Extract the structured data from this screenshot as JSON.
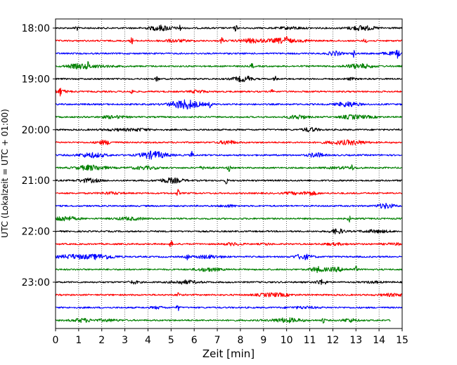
{
  "chart_data": {
    "type": "line",
    "xlabel": "Zeit  [min]",
    "ylabel": "UTC (Lokalzeit = UTC + 01:00)",
    "xlim": [
      0,
      15
    ],
    "x_ticks": [
      "0",
      "1",
      "2",
      "3",
      "4",
      "5",
      "6",
      "7",
      "8",
      "9",
      "10",
      "11",
      "12",
      "13",
      "14",
      "15"
    ],
    "y_ticks": [
      "18:00",
      "19:00",
      "20:00",
      "21:00",
      "22:00",
      "23:00"
    ],
    "grid": "vertical dotted at each minute",
    "trace_interval_min": 15,
    "trace_colors": [
      "#000000",
      "#ff0000",
      "#0000ff",
      "#008000"
    ],
    "traces": [
      {
        "start": "18:00",
        "color": "#000000",
        "events": [
          0.9,
          5.4,
          7.8
        ]
      },
      {
        "start": "18:15",
        "color": "#ff0000",
        "events": [
          3.3,
          7.2,
          10.0,
          13.4
        ]
      },
      {
        "start": "18:30",
        "color": "#0000ff",
        "events": [
          12.9,
          14.8
        ]
      },
      {
        "start": "18:45",
        "color": "#008000",
        "events": [
          1.4,
          8.5
        ]
      },
      {
        "start": "19:00",
        "color": "#000000",
        "events": [
          4.4,
          8.4,
          9.5
        ]
      },
      {
        "start": "19:15",
        "color": "#ff0000",
        "events": [
          0.2,
          3.3,
          9.4
        ]
      },
      {
        "start": "19:30",
        "color": "#0000ff",
        "events": [
          6.7
        ]
      },
      {
        "start": "19:45",
        "color": "#008000",
        "events": []
      },
      {
        "start": "20:00",
        "color": "#000000",
        "events": []
      },
      {
        "start": "20:15",
        "color": "#ff0000",
        "events": []
      },
      {
        "start": "20:30",
        "color": "#0000ff",
        "events": [
          5.9
        ]
      },
      {
        "start": "20:45",
        "color": "#008000",
        "events": [
          7.5,
          12.8
        ]
      },
      {
        "start": "21:00",
        "color": "#000000",
        "events": [
          7.4
        ]
      },
      {
        "start": "21:15",
        "color": "#ff0000",
        "events": [
          5.3
        ]
      },
      {
        "start": "21:30",
        "color": "#0000ff",
        "events": []
      },
      {
        "start": "21:45",
        "color": "#008000",
        "events": [
          12.7
        ]
      },
      {
        "start": "22:00",
        "color": "#000000",
        "events": []
      },
      {
        "start": "22:15",
        "color": "#ff0000",
        "events": [
          5.0
        ]
      },
      {
        "start": "22:30",
        "color": "#0000ff",
        "events": [
          5.7
        ]
      },
      {
        "start": "22:45",
        "color": "#008000",
        "events": [
          13.0
        ]
      },
      {
        "start": "23:00",
        "color": "#000000",
        "events": []
      },
      {
        "start": "23:15",
        "color": "#ff0000",
        "events": [
          5.3
        ]
      },
      {
        "start": "23:30",
        "color": "#0000ff",
        "events": [
          5.3
        ]
      },
      {
        "start": "23:45",
        "color": "#008000",
        "events": [
          11.6
        ]
      }
    ]
  }
}
